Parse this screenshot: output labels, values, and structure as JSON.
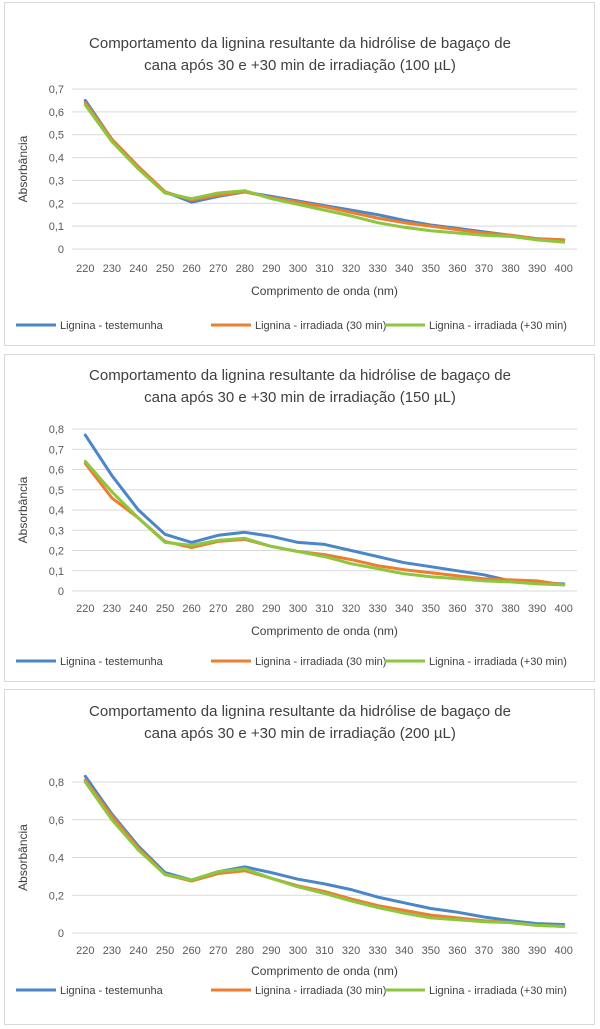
{
  "colors": {
    "testemunha": "#4a86c8",
    "irradiada_30": "#ed7d31",
    "irradiada_plus30": "#8dc63f",
    "grid": "#d9d9d9"
  },
  "chart_data": [
    {
      "type": "line",
      "title": [
        "Comportamento da lignina resultante da hidrólise de bagaço de",
        "cana após 30 e +30 min de irradiação (100 µL)"
      ],
      "xlabel": "Comprimento de onda (nm)",
      "ylabel": "Absorbância",
      "x": [
        220,
        230,
        240,
        250,
        260,
        270,
        280,
        290,
        300,
        310,
        320,
        330,
        340,
        350,
        360,
        370,
        380,
        390,
        400
      ],
      "ylim": [
        0,
        0.7
      ],
      "yticks": [
        "0",
        "0,1",
        "0,2",
        "0,3",
        "0,4",
        "0,5",
        "0,6",
        "0,7"
      ],
      "grid": true,
      "legend": "bottom",
      "series": [
        {
          "name": "Lignina - testemunha",
          "color": "#4a86c8",
          "values": [
            0.65,
            0.48,
            0.36,
            0.25,
            0.205,
            0.23,
            0.25,
            0.23,
            0.21,
            0.19,
            0.17,
            0.15,
            0.125,
            0.105,
            0.09,
            0.075,
            0.06,
            0.045,
            0.04
          ]
        },
        {
          "name": "Lignina - irradiada (30 min)",
          "color": "#ed7d31",
          "values": [
            0.64,
            0.48,
            0.36,
            0.25,
            0.215,
            0.235,
            0.25,
            0.225,
            0.205,
            0.185,
            0.16,
            0.135,
            0.115,
            0.1,
            0.085,
            0.07,
            0.06,
            0.045,
            0.04
          ]
        },
        {
          "name": "Lignina - irradiada (+30 min)",
          "color": "#8dc63f",
          "values": [
            0.63,
            0.47,
            0.35,
            0.245,
            0.22,
            0.245,
            0.255,
            0.22,
            0.195,
            0.17,
            0.145,
            0.115,
            0.095,
            0.08,
            0.07,
            0.06,
            0.055,
            0.04,
            0.03
          ]
        }
      ]
    },
    {
      "type": "line",
      "title": [
        "Comportamento da lignina resultante da hidrólise de bagaço de",
        "cana após 30 e +30 min de irradiação (150 µL)"
      ],
      "xlabel": "Comprimento de onda (nm)",
      "ylabel": "Absorbância",
      "x": [
        220,
        230,
        240,
        250,
        260,
        270,
        280,
        290,
        300,
        310,
        320,
        330,
        340,
        350,
        360,
        370,
        380,
        390,
        400
      ],
      "ylim": [
        0,
        0.8
      ],
      "yticks": [
        "0",
        "0,1",
        "0,2",
        "0,3",
        "0,4",
        "0,5",
        "0,6",
        "0,7",
        "0,8"
      ],
      "grid": true,
      "legend": "bottom",
      "series": [
        {
          "name": "Lignina - testemunha",
          "color": "#4a86c8",
          "values": [
            0.77,
            0.57,
            0.4,
            0.28,
            0.24,
            0.275,
            0.29,
            0.27,
            0.24,
            0.23,
            0.2,
            0.17,
            0.14,
            0.12,
            0.1,
            0.08,
            0.05,
            0.04,
            0.035
          ]
        },
        {
          "name": "Lignina - irradiada (30 min)",
          "color": "#ed7d31",
          "values": [
            0.63,
            0.46,
            0.36,
            0.245,
            0.215,
            0.245,
            0.255,
            0.22,
            0.195,
            0.18,
            0.155,
            0.125,
            0.105,
            0.09,
            0.075,
            0.06,
            0.055,
            0.05,
            0.03
          ]
        },
        {
          "name": "Lignina - irradiada (+30 min)",
          "color": "#8dc63f",
          "values": [
            0.64,
            0.49,
            0.36,
            0.24,
            0.225,
            0.25,
            0.26,
            0.22,
            0.195,
            0.17,
            0.135,
            0.11,
            0.085,
            0.07,
            0.06,
            0.05,
            0.045,
            0.035,
            0.03
          ]
        }
      ]
    },
    {
      "type": "line",
      "title": [
        "Comportamento da lignina resultante da hidrólise de bagaço de",
        "cana após 30 e +30 min de irradiação (200 µL)"
      ],
      "xlabel": "Comprimento de onda (nm)",
      "ylabel": "Absorbância",
      "x": [
        220,
        230,
        240,
        250,
        260,
        270,
        280,
        290,
        300,
        310,
        320,
        330,
        340,
        350,
        360,
        370,
        380,
        390,
        400
      ],
      "ylim": [
        0,
        0.8
      ],
      "yticks": [
        "0",
        "0,2",
        "0,4",
        "0,6",
        "0,8"
      ],
      "grid": true,
      "legend": "bottom",
      "series": [
        {
          "name": "Lignina - testemunha",
          "color": "#4a86c8",
          "values": [
            0.83,
            0.63,
            0.46,
            0.32,
            0.28,
            0.325,
            0.35,
            0.32,
            0.285,
            0.26,
            0.23,
            0.19,
            0.16,
            0.13,
            0.11,
            0.085,
            0.065,
            0.05,
            0.045
          ]
        },
        {
          "name": "Lignina - irradiada (30 min)",
          "color": "#ed7d31",
          "values": [
            0.81,
            0.62,
            0.45,
            0.31,
            0.275,
            0.315,
            0.33,
            0.29,
            0.25,
            0.22,
            0.18,
            0.145,
            0.12,
            0.095,
            0.08,
            0.065,
            0.055,
            0.04,
            0.035
          ]
        },
        {
          "name": "Lignina - irradiada (+30 min)",
          "color": "#8dc63f",
          "values": [
            0.8,
            0.6,
            0.44,
            0.31,
            0.28,
            0.325,
            0.34,
            0.29,
            0.245,
            0.21,
            0.17,
            0.135,
            0.105,
            0.08,
            0.07,
            0.06,
            0.055,
            0.04,
            0.035
          ]
        }
      ]
    }
  ]
}
